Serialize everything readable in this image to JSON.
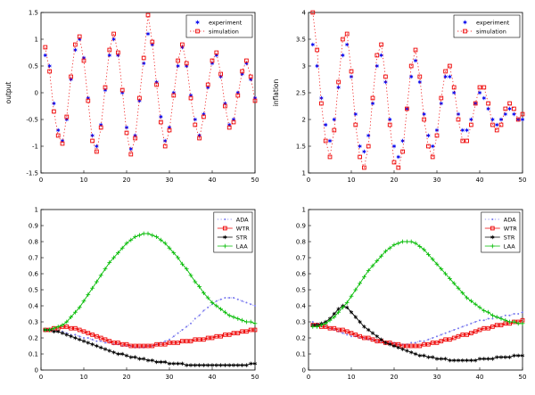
{
  "figure": {
    "background": "#ffffff"
  },
  "chart_data": [
    {
      "id": "output",
      "type": "scatter",
      "title": "",
      "xlabel": "",
      "ylabel": "output",
      "xlim": [
        0,
        50
      ],
      "ylim": [
        -1.5,
        1.5
      ],
      "xticks": [
        0,
        10,
        20,
        30,
        40,
        50
      ],
      "yticks": [
        -1.5,
        -1,
        -0.5,
        0,
        0.5,
        1,
        1.5
      ],
      "legend": {
        "position": "top-right"
      },
      "x_start": 1,
      "x_step": 1,
      "series": [
        {
          "name": "experiment",
          "color": "#0000ee",
          "marker": "asterisk",
          "line": "none",
          "values": [
            0.7,
            0.5,
            -0.2,
            -0.7,
            -0.9,
            -0.5,
            0.25,
            0.8,
            1.0,
            0.65,
            -0.1,
            -0.8,
            -1.0,
            -0.6,
            0.05,
            0.7,
            1.0,
            0.7,
            0.0,
            -0.65,
            -1.05,
            -0.8,
            -0.15,
            0.55,
            1.1,
            0.9,
            0.2,
            -0.45,
            -0.9,
            -0.65,
            0.0,
            0.5,
            0.85,
            0.5,
            -0.05,
            -0.5,
            -0.8,
            -0.4,
            0.1,
            0.55,
            0.7,
            0.3,
            -0.2,
            -0.6,
            -0.5,
            0.0,
            0.35,
            0.55,
            0.25,
            -0.1
          ]
        },
        {
          "name": "simulation",
          "color": "#ee0000",
          "marker": "square",
          "line": "dotted",
          "values": [
            0.85,
            0.4,
            -0.35,
            -0.8,
            -0.95,
            -0.45,
            0.3,
            0.9,
            1.05,
            0.6,
            -0.15,
            -0.9,
            -1.1,
            -0.65,
            0.1,
            0.8,
            1.1,
            0.75,
            0.05,
            -0.75,
            -1.15,
            -0.85,
            -0.1,
            0.65,
            1.45,
            0.95,
            0.15,
            -0.55,
            -1.0,
            -0.7,
            -0.05,
            0.6,
            0.9,
            0.55,
            -0.1,
            -0.6,
            -0.85,
            -0.45,
            0.15,
            0.6,
            0.75,
            0.35,
            -0.25,
            -0.65,
            -0.55,
            -0.05,
            0.4,
            0.6,
            0.3,
            -0.15
          ]
        }
      ]
    },
    {
      "id": "inflation",
      "type": "scatter",
      "title": "",
      "xlabel": "",
      "ylabel": "inflation",
      "xlim": [
        0,
        50
      ],
      "ylim": [
        1,
        4
      ],
      "xticks": [
        0,
        10,
        20,
        30,
        40,
        50
      ],
      "yticks": [
        1,
        1.5,
        2,
        2.5,
        3,
        3.5,
        4
      ],
      "legend": {
        "position": "top-right"
      },
      "x_start": 1,
      "x_step": 1,
      "series": [
        {
          "name": "experiment",
          "color": "#0000ee",
          "marker": "asterisk",
          "line": "none",
          "values": [
            3.4,
            3.0,
            2.4,
            1.9,
            1.6,
            2.0,
            2.6,
            3.2,
            3.4,
            2.8,
            2.1,
            1.5,
            1.4,
            1.7,
            2.3,
            3.0,
            3.2,
            2.7,
            2.0,
            1.5,
            1.3,
            1.6,
            2.2,
            2.8,
            3.1,
            2.7,
            2.1,
            1.7,
            1.5,
            1.8,
            2.3,
            2.8,
            2.8,
            2.5,
            2.1,
            1.8,
            1.8,
            2.0,
            2.3,
            2.5,
            2.4,
            2.2,
            2.0,
            1.9,
            2.0,
            2.1,
            2.2,
            2.1,
            2.0,
            2.0
          ]
        },
        {
          "name": "simulation",
          "color": "#ee0000",
          "marker": "square",
          "line": "dotted",
          "values": [
            4.0,
            3.3,
            2.3,
            1.6,
            1.3,
            1.8,
            2.7,
            3.5,
            3.6,
            2.9,
            1.9,
            1.3,
            1.1,
            1.5,
            2.4,
            3.2,
            3.4,
            2.8,
            1.9,
            1.2,
            1.1,
            1.4,
            2.2,
            3.0,
            3.3,
            2.8,
            2.0,
            1.5,
            1.3,
            1.7,
            2.4,
            2.9,
            3.0,
            2.6,
            2.0,
            1.6,
            1.6,
            1.9,
            2.3,
            2.6,
            2.6,
            2.3,
            1.9,
            1.8,
            1.9,
            2.2,
            2.3,
            2.2,
            2.0,
            2.1
          ]
        }
      ]
    },
    {
      "id": "strategies-left",
      "type": "line",
      "title": "",
      "xlabel": "",
      "ylabel": "",
      "xlim": [
        0,
        50
      ],
      "ylim": [
        0,
        1
      ],
      "xticks": [
        0,
        10,
        20,
        30,
        40,
        50
      ],
      "yticks": [
        0,
        0.1,
        0.2,
        0.3,
        0.4,
        0.5,
        0.6,
        0.7,
        0.8,
        0.9,
        1
      ],
      "legend": {
        "position": "top-right"
      },
      "x_start": 1,
      "x_step": 1,
      "series": [
        {
          "name": "ADA",
          "color": "#7777ee",
          "marker": "dot",
          "line": "dotted",
          "values": [
            0.25,
            0.25,
            0.25,
            0.24,
            0.24,
            0.23,
            0.22,
            0.22,
            0.21,
            0.2,
            0.2,
            0.19,
            0.18,
            0.18,
            0.17,
            0.17,
            0.16,
            0.16,
            0.15,
            0.15,
            0.15,
            0.14,
            0.14,
            0.14,
            0.15,
            0.15,
            0.16,
            0.17,
            0.18,
            0.19,
            0.21,
            0.23,
            0.25,
            0.27,
            0.29,
            0.32,
            0.34,
            0.37,
            0.39,
            0.41,
            0.43,
            0.44,
            0.45,
            0.45,
            0.45,
            0.44,
            0.43,
            0.42,
            0.41,
            0.4
          ]
        },
        {
          "name": "WTR",
          "color": "#ee0000",
          "marker": "square",
          "line": "solid",
          "values": [
            0.25,
            0.25,
            0.26,
            0.26,
            0.27,
            0.27,
            0.26,
            0.26,
            0.25,
            0.24,
            0.23,
            0.22,
            0.21,
            0.2,
            0.19,
            0.18,
            0.17,
            0.17,
            0.16,
            0.16,
            0.15,
            0.15,
            0.15,
            0.15,
            0.15,
            0.15,
            0.16,
            0.16,
            0.16,
            0.17,
            0.17,
            0.17,
            0.18,
            0.18,
            0.18,
            0.19,
            0.19,
            0.19,
            0.2,
            0.2,
            0.21,
            0.21,
            0.22,
            0.22,
            0.23,
            0.23,
            0.24,
            0.24,
            0.25,
            0.25
          ]
        },
        {
          "name": "STR",
          "color": "#000000",
          "marker": "asterisk",
          "line": "solid",
          "values": [
            0.25,
            0.25,
            0.24,
            0.24,
            0.23,
            0.22,
            0.21,
            0.2,
            0.19,
            0.18,
            0.17,
            0.16,
            0.15,
            0.14,
            0.13,
            0.12,
            0.11,
            0.1,
            0.1,
            0.09,
            0.08,
            0.08,
            0.07,
            0.07,
            0.06,
            0.06,
            0.05,
            0.05,
            0.05,
            0.04,
            0.04,
            0.04,
            0.04,
            0.03,
            0.03,
            0.03,
            0.03,
            0.03,
            0.03,
            0.03,
            0.03,
            0.03,
            0.03,
            0.03,
            0.03,
            0.03,
            0.03,
            0.03,
            0.04,
            0.04
          ]
        },
        {
          "name": "LAA",
          "color": "#00bb00",
          "marker": "plus",
          "line": "solid",
          "values": [
            0.25,
            0.25,
            0.26,
            0.27,
            0.28,
            0.3,
            0.33,
            0.36,
            0.39,
            0.43,
            0.47,
            0.51,
            0.55,
            0.59,
            0.63,
            0.67,
            0.7,
            0.73,
            0.76,
            0.79,
            0.81,
            0.83,
            0.84,
            0.85,
            0.85,
            0.84,
            0.83,
            0.81,
            0.79,
            0.76,
            0.73,
            0.7,
            0.66,
            0.63,
            0.59,
            0.55,
            0.52,
            0.48,
            0.45,
            0.42,
            0.4,
            0.38,
            0.36,
            0.34,
            0.33,
            0.32,
            0.31,
            0.3,
            0.3,
            0.29
          ]
        }
      ]
    },
    {
      "id": "strategies-right",
      "type": "line",
      "title": "",
      "xlabel": "",
      "ylabel": "",
      "xlim": [
        0,
        50
      ],
      "ylim": [
        0,
        1
      ],
      "xticks": [
        0,
        10,
        20,
        30,
        40,
        50
      ],
      "yticks": [
        0,
        0.1,
        0.2,
        0.3,
        0.4,
        0.5,
        0.6,
        0.7,
        0.8,
        0.9,
        1
      ],
      "legend": {
        "position": "top-right"
      },
      "x_start": 1,
      "x_step": 1,
      "series": [
        {
          "name": "ADA",
          "color": "#7777ee",
          "marker": "dot",
          "line": "dotted",
          "values": [
            0.3,
            0.29,
            0.28,
            0.27,
            0.26,
            0.25,
            0.24,
            0.23,
            0.22,
            0.21,
            0.21,
            0.2,
            0.2,
            0.19,
            0.19,
            0.18,
            0.18,
            0.17,
            0.17,
            0.17,
            0.16,
            0.16,
            0.16,
            0.17,
            0.17,
            0.18,
            0.18,
            0.19,
            0.2,
            0.21,
            0.22,
            0.23,
            0.24,
            0.25,
            0.26,
            0.27,
            0.28,
            0.29,
            0.3,
            0.31,
            0.31,
            0.32,
            0.32,
            0.33,
            0.33,
            0.34,
            0.34,
            0.35,
            0.35,
            0.36
          ]
        },
        {
          "name": "WTR",
          "color": "#ee0000",
          "marker": "square",
          "line": "solid",
          "values": [
            0.28,
            0.28,
            0.27,
            0.27,
            0.26,
            0.26,
            0.25,
            0.25,
            0.24,
            0.23,
            0.22,
            0.21,
            0.2,
            0.2,
            0.19,
            0.18,
            0.18,
            0.17,
            0.17,
            0.16,
            0.16,
            0.15,
            0.15,
            0.15,
            0.15,
            0.15,
            0.16,
            0.16,
            0.17,
            0.17,
            0.18,
            0.19,
            0.19,
            0.2,
            0.21,
            0.22,
            0.22,
            0.23,
            0.24,
            0.25,
            0.26,
            0.26,
            0.27,
            0.28,
            0.28,
            0.29,
            0.29,
            0.3,
            0.3,
            0.31
          ]
        },
        {
          "name": "STR",
          "color": "#000000",
          "marker": "asterisk",
          "line": "solid",
          "values": [
            0.28,
            0.28,
            0.29,
            0.3,
            0.32,
            0.35,
            0.38,
            0.4,
            0.39,
            0.36,
            0.33,
            0.3,
            0.27,
            0.25,
            0.23,
            0.21,
            0.19,
            0.17,
            0.16,
            0.15,
            0.14,
            0.13,
            0.12,
            0.11,
            0.1,
            0.09,
            0.09,
            0.08,
            0.08,
            0.07,
            0.07,
            0.07,
            0.06,
            0.06,
            0.06,
            0.06,
            0.06,
            0.06,
            0.06,
            0.07,
            0.07,
            0.07,
            0.07,
            0.08,
            0.08,
            0.08,
            0.08,
            0.09,
            0.09,
            0.09
          ]
        },
        {
          "name": "LAA",
          "color": "#00bb00",
          "marker": "plus",
          "line": "solid",
          "values": [
            0.27,
            0.27,
            0.28,
            0.29,
            0.31,
            0.33,
            0.36,
            0.39,
            0.42,
            0.46,
            0.5,
            0.54,
            0.58,
            0.62,
            0.65,
            0.68,
            0.71,
            0.74,
            0.76,
            0.78,
            0.79,
            0.8,
            0.8,
            0.8,
            0.79,
            0.77,
            0.75,
            0.72,
            0.69,
            0.66,
            0.63,
            0.6,
            0.57,
            0.54,
            0.51,
            0.48,
            0.45,
            0.43,
            0.41,
            0.39,
            0.37,
            0.36,
            0.34,
            0.33,
            0.32,
            0.31,
            0.3,
            0.3,
            0.29,
            0.29
          ]
        }
      ]
    }
  ]
}
